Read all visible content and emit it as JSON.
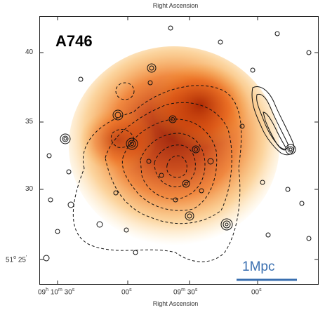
{
  "figure": {
    "cluster_name": "A746",
    "top_axis_title": "Right Ascension",
    "bottom_axis_title": "Right Ascension",
    "scale_bar_label": "1Mpc",
    "y_ticks": [
      "40",
      "35",
      "30"
    ],
    "y_tick_last": {
      "deg": "51",
      "deg_unit": "o",
      "min": "25",
      "min_unit": "'"
    },
    "x_ticks": [
      {
        "h": "09",
        "h_unit": "h",
        "m": "10",
        "m_unit": "m",
        "s": "30",
        "s_unit": "s"
      },
      {
        "s": "00",
        "s_unit": "s"
      },
      {
        "m": "09",
        "m_unit": "m",
        "s": "30",
        "s_unit": "s"
      },
      {
        "s": "00",
        "s_unit": "s"
      }
    ],
    "colors": {
      "xray_core": "#a01e00",
      "xray_mid": "#e85a0a",
      "xray_outer": "#f7a028",
      "contour": "#111111",
      "scale_bar": "#3a6fb0"
    }
  }
}
